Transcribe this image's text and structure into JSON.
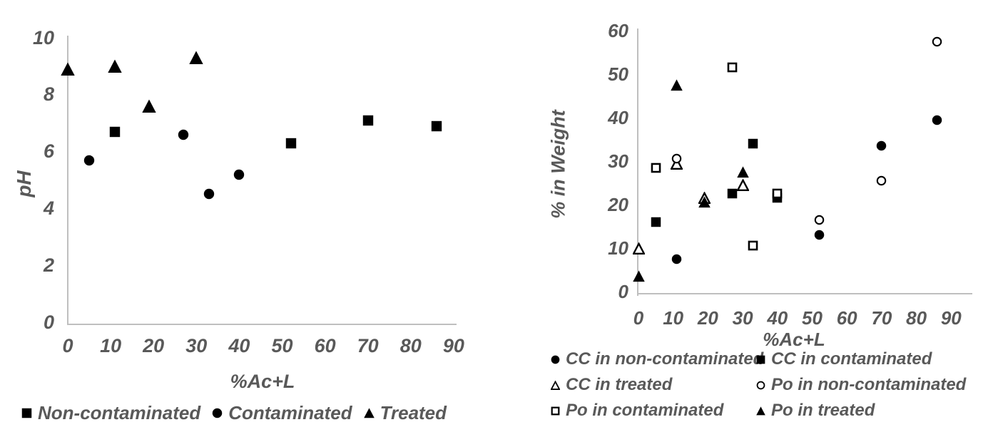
{
  "colors": {
    "marker": "#000000",
    "axis_line": "#bfbfbf",
    "label_text": "#595959",
    "background": "#ffffff"
  },
  "chart_data": [
    {
      "id": "ph-chart",
      "type": "scatter",
      "title": "",
      "xlabel": "%Ac+L",
      "ylabel": "pH",
      "xlim": [
        0,
        90
      ],
      "ylim": [
        0,
        10
      ],
      "x_ticks": [
        0,
        10,
        20,
        30,
        40,
        50,
        60,
        70,
        80,
        90
      ],
      "y_ticks": [
        0,
        2,
        4,
        6,
        8,
        10
      ],
      "grid": false,
      "legend_position": "bottom",
      "series": [
        {
          "name": "Non-contaminated",
          "marker": "filled-square",
          "points": [
            [
              11,
              6.7
            ],
            [
              52,
              6.3
            ],
            [
              70,
              7.1
            ],
            [
              86,
              6.9
            ]
          ]
        },
        {
          "name": "Contaminated",
          "marker": "filled-circle",
          "points": [
            [
              5,
              5.7
            ],
            [
              27,
              6.6
            ],
            [
              33,
              4.5
            ],
            [
              40,
              5.2
            ]
          ]
        },
        {
          "name": "Treated",
          "marker": "filled-triangle",
          "points": [
            [
              0,
              8.9
            ],
            [
              11,
              9.0
            ],
            [
              19,
              7.6
            ],
            [
              30,
              9.3
            ]
          ]
        }
      ]
    },
    {
      "id": "weight-chart",
      "type": "scatter",
      "title": "",
      "xlabel": "%Ac+L",
      "ylabel": "% in Weight",
      "xlim": [
        0,
        90
      ],
      "ylim": [
        0,
        60
      ],
      "x_ticks": [
        0,
        10,
        20,
        30,
        40,
        50,
        60,
        70,
        80,
        90
      ],
      "y_ticks": [
        0,
        10,
        20,
        30,
        40,
        50,
        60
      ],
      "grid": false,
      "legend_position": "bottom",
      "series": [
        {
          "name": "CC in non-contaminated",
          "marker": "filled-circle",
          "points": [
            [
              11,
              7.5
            ],
            [
              52,
              13
            ],
            [
              70,
              33.5
            ],
            [
              86,
              39.5
            ]
          ]
        },
        {
          "name": "CC in contaminated",
          "marker": "filled-square",
          "points": [
            [
              5,
              16
            ],
            [
              27,
              22.5
            ],
            [
              33,
              34
            ],
            [
              40,
              21.5
            ]
          ]
        },
        {
          "name": "CC in treated",
          "marker": "open-triangle",
          "points": [
            [
              0,
              10
            ],
            [
              11,
              29.5
            ],
            [
              19,
              21.5
            ],
            [
              30,
              24.5
            ]
          ]
        },
        {
          "name": "Po in non-contaminated",
          "marker": "open-circle",
          "points": [
            [
              11,
              30.5
            ],
            [
              52,
              16.5
            ],
            [
              70,
              25.5
            ],
            [
              86,
              57.5
            ]
          ]
        },
        {
          "name": "Po in contaminated",
          "marker": "open-square",
          "points": [
            [
              5,
              28.5
            ],
            [
              27,
              51.5
            ],
            [
              33,
              10.5
            ],
            [
              40,
              22.5
            ]
          ]
        },
        {
          "name": "Po in treated",
          "marker": "filled-triangle",
          "points": [
            [
              0,
              3.5
            ],
            [
              11,
              47.5
            ],
            [
              19,
              20.5
            ],
            [
              30,
              27.5
            ]
          ]
        }
      ]
    }
  ]
}
